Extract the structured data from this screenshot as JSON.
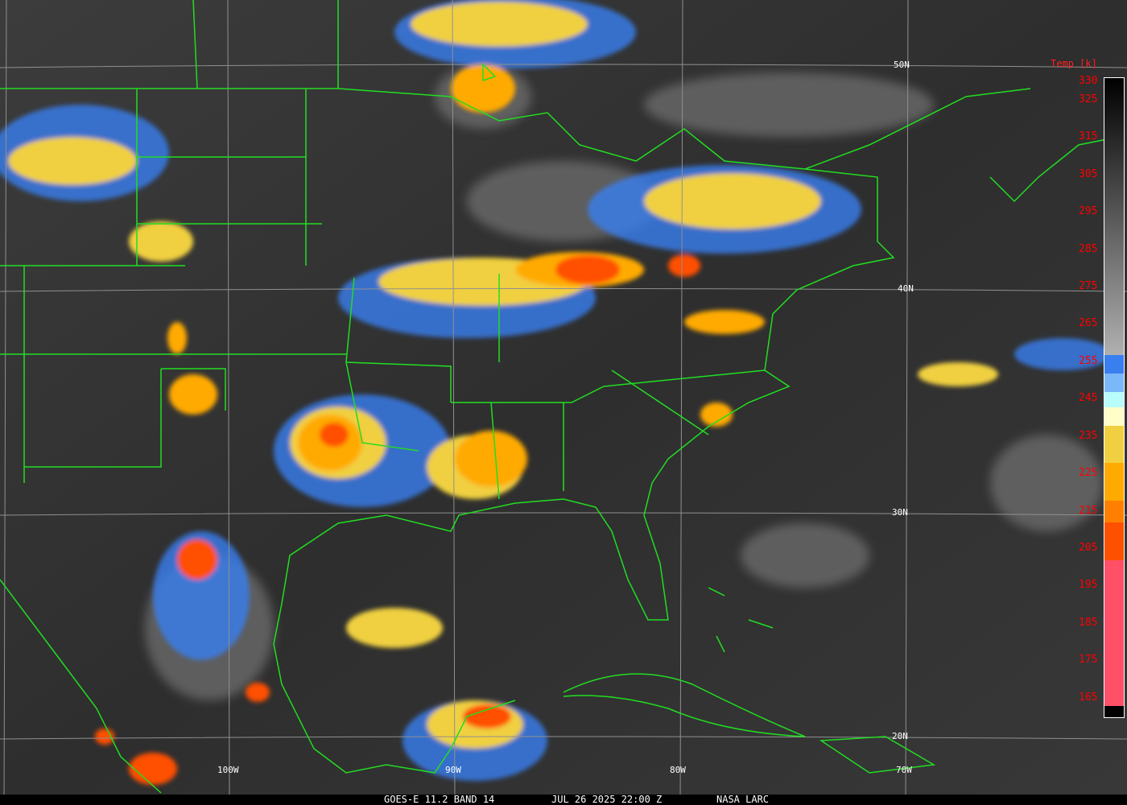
{
  "caption": {
    "satellite": "GOES-E 11.2 BAND 14",
    "datetime": "JUL 26 2025 22:00 Z",
    "source": "NASA LARC"
  },
  "colorbar": {
    "title": "Temp [k]",
    "labels": [
      "330",
      "325",
      "315",
      "305",
      "295",
      "285",
      "275",
      "265",
      "255",
      "245",
      "235",
      "225",
      "215",
      "205",
      "195",
      "185",
      "175",
      "165"
    ],
    "range_k": [
      160,
      331
    ],
    "segments": [
      {
        "from": 331,
        "to": 257,
        "color": "gradient #000000-#b0b0b0"
      },
      {
        "from": 257,
        "to": 252,
        "color": "#3a7ff0"
      },
      {
        "from": 252,
        "to": 247,
        "color": "#7ab8f8"
      },
      {
        "from": 247,
        "to": 243,
        "color": "#b8fcfc"
      },
      {
        "from": 243,
        "to": 238,
        "color": "#fffdc8"
      },
      {
        "from": 238,
        "to": 228,
        "color": "#f0d040"
      },
      {
        "from": 228,
        "to": 218,
        "color": "#ffaa00"
      },
      {
        "from": 218,
        "to": 212,
        "color": "#ff8000"
      },
      {
        "from": 212,
        "to": 202,
        "color": "#ff5000"
      },
      {
        "from": 202,
        "to": 163,
        "color": "#ff5068"
      },
      {
        "from": 163,
        "to": 160,
        "color": "#000000"
      }
    ]
  },
  "grid": {
    "latitudes": [
      "50N",
      "40N",
      "30N",
      "20N"
    ],
    "longitudes": [
      "100W",
      "90W",
      "80W",
      "70W"
    ]
  },
  "colors": {
    "boundaries": "#22dd22",
    "grid": "#909090",
    "labels": "#ff0000"
  }
}
